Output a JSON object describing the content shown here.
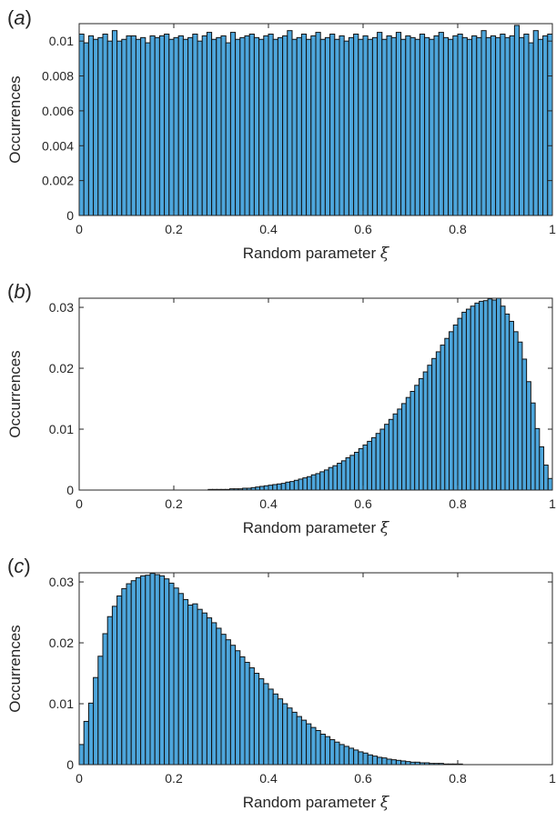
{
  "chart_data": [
    {
      "type": "bar",
      "panel_label": "a",
      "xlabel": "Random parameter",
      "xlabel_symbol": "ξ",
      "ylabel": "Occurrences",
      "xlim": [
        0,
        1
      ],
      "ylim": [
        0,
        0.011
      ],
      "xticks": [
        "0",
        "0.2",
        "0.4",
        "0.6",
        "0.8",
        "1"
      ],
      "yticks": [
        "0",
        "0.002",
        "0.004",
        "0.006",
        "0.008",
        "0.01"
      ],
      "bar_color": "#4da6dc",
      "bins": 100,
      "values": [
        0.0104,
        0.0099,
        0.0103,
        0.0101,
        0.0102,
        0.0104,
        0.01,
        0.0106,
        0.01,
        0.0101,
        0.0103,
        0.0103,
        0.0101,
        0.0102,
        0.0099,
        0.0103,
        0.0102,
        0.0103,
        0.0104,
        0.0101,
        0.0102,
        0.0103,
        0.0101,
        0.0102,
        0.0104,
        0.01,
        0.0103,
        0.0105,
        0.0101,
        0.0102,
        0.0103,
        0.0099,
        0.0105,
        0.0101,
        0.0102,
        0.0103,
        0.0104,
        0.0102,
        0.0101,
        0.0103,
        0.0104,
        0.0101,
        0.0102,
        0.0103,
        0.0106,
        0.0101,
        0.0102,
        0.0104,
        0.0101,
        0.0103,
        0.0105,
        0.0101,
        0.0102,
        0.0104,
        0.0101,
        0.0103,
        0.01,
        0.0102,
        0.0104,
        0.0101,
        0.0103,
        0.0101,
        0.0102,
        0.0105,
        0.0101,
        0.0103,
        0.0102,
        0.0105,
        0.0101,
        0.0103,
        0.0102,
        0.0101,
        0.0104,
        0.0102,
        0.0101,
        0.0103,
        0.0105,
        0.0102,
        0.0101,
        0.0103,
        0.0104,
        0.0102,
        0.0101,
        0.0103,
        0.0102,
        0.0106,
        0.0102,
        0.0103,
        0.0102,
        0.0104,
        0.0102,
        0.0103,
        0.0109,
        0.0102,
        0.0104,
        0.0099,
        0.0106,
        0.0101,
        0.0103,
        0.0104
      ]
    },
    {
      "type": "bar",
      "panel_label": "b",
      "xlabel": "Random parameter",
      "xlabel_symbol": "ξ",
      "ylabel": "Occurrences",
      "xlim": [
        0,
        1
      ],
      "ylim": [
        0,
        0.0315
      ],
      "xticks": [
        "0",
        "0.2",
        "0.4",
        "0.6",
        "0.8",
        "1"
      ],
      "yticks": [
        "0",
        "0.01",
        "0.02",
        "0.03"
      ],
      "bar_color": "#4da6dc",
      "bins": 100,
      "values": [
        0,
        0,
        0,
        0,
        0,
        0,
        0,
        0,
        0,
        0,
        0,
        0,
        0,
        0,
        0,
        0,
        0,
        0,
        0,
        0,
        0,
        0,
        0,
        0,
        0,
        0,
        0,
        0,
        0,
        0,
        0.0001,
        0.0001,
        0.0001,
        0.0001,
        0.0001,
        0.0002,
        0.0002,
        0.0002,
        0.0003,
        0.0003,
        0.0004,
        0.0005,
        0.0006,
        0.0007,
        0.0008,
        0.0009,
        0.001,
        0.0011,
        0.0013,
        0.0014,
        0.0016,
        0.0018,
        0.002,
        0.0022,
        0.0025,
        0.0027,
        0.003,
        0.0033,
        0.0037,
        0.004,
        0.0044,
        0.0048,
        0.0053,
        0.0057,
        0.0062,
        0.0068,
        0.0074,
        0.008,
        0.0086,
        0.0093,
        0.01,
        0.0108,
        0.0116,
        0.0125,
        0.0133,
        0.0142,
        0.0152,
        0.0162,
        0.0172,
        0.0183,
        0.0194,
        0.0205,
        0.0216,
        0.0227,
        0.0238,
        0.0249,
        0.026,
        0.0271,
        0.0282,
        0.0292,
        0.0297,
        0.0302,
        0.0307,
        0.031,
        0.0311,
        0.0314,
        0.0312,
        0.0315,
        0.0302,
        0.0289,
        0.0277,
        0.026,
        0.0243,
        0.0215,
        0.0178,
        0.0143,
        0.0101,
        0.0071,
        0.0041,
        0.0019
      ]
    },
    {
      "type": "bar",
      "panel_label": "c",
      "xlabel": "Random parameter",
      "xlabel_symbol": "ξ",
      "ylabel": "Occurrences",
      "xlim": [
        0,
        1
      ],
      "ylim": [
        0,
        0.0315
      ],
      "xticks": [
        "0",
        "0.2",
        "0.4",
        "0.6",
        "0.8",
        "1"
      ],
      "yticks": [
        "0",
        "0.01",
        "0.02",
        "0.03"
      ],
      "bar_color": "#4da6dc",
      "bins": 100,
      "values": [
        0.0033,
        0.0071,
        0.0101,
        0.0143,
        0.0178,
        0.0215,
        0.0243,
        0.026,
        0.0277,
        0.0289,
        0.0297,
        0.0302,
        0.0307,
        0.031,
        0.0311,
        0.0314,
        0.0312,
        0.031,
        0.0305,
        0.0298,
        0.029,
        0.0281,
        0.0271,
        0.0262,
        0.0264,
        0.0255,
        0.0249,
        0.0241,
        0.0233,
        0.0224,
        0.0214,
        0.0205,
        0.0196,
        0.0187,
        0.0177,
        0.0168,
        0.0159,
        0.015,
        0.0141,
        0.0133,
        0.0124,
        0.0116,
        0.0108,
        0.01,
        0.0093,
        0.0086,
        0.0079,
        0.0073,
        0.0067,
        0.0061,
        0.0056,
        0.005,
        0.0046,
        0.0041,
        0.0037,
        0.0033,
        0.003,
        0.0027,
        0.0024,
        0.0021,
        0.0019,
        0.0016,
        0.0014,
        0.0012,
        0.0011,
        0.0009,
        0.0008,
        0.0007,
        0.0006,
        0.0005,
        0.0004,
        0.0004,
        0.0003,
        0.0003,
        0.0002,
        0.0002,
        0.0002,
        0.0001,
        0.0001,
        0.0001,
        0.0001,
        0,
        0,
        0,
        0,
        0,
        0,
        0,
        0,
        0,
        0,
        0,
        0,
        0,
        0,
        0,
        0,
        0,
        0,
        0
      ]
    }
  ]
}
